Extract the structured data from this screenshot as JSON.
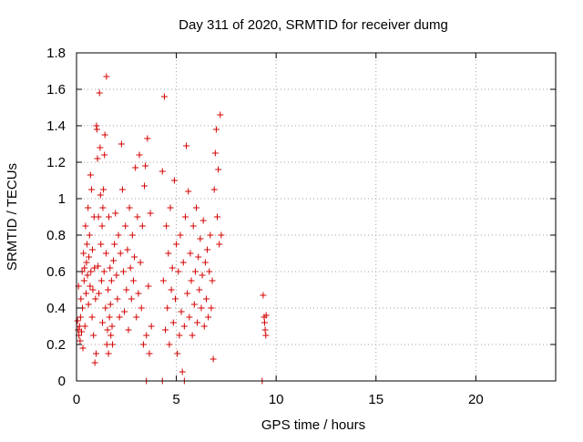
{
  "chart_data": {
    "type": "scatter",
    "title": "Day 311 of 2020, SRMTID for receiver dumg",
    "xlabel": "GPS time / hours",
    "ylabel": "SRMTID / TECUs",
    "xlim": [
      0,
      24
    ],
    "ylim": [
      0,
      1.8
    ],
    "x_ticks": [
      0,
      5,
      10,
      15,
      20
    ],
    "x_tick_labels": [
      "0",
      "5",
      "10",
      "15",
      "20"
    ],
    "y_ticks": [
      0,
      0.2,
      0.4,
      0.6,
      0.8,
      1.0,
      1.2,
      1.4,
      1.6,
      1.8
    ],
    "y_tick_labels": [
      "0",
      "0.2",
      "0.4",
      "0.6",
      "0.8",
      "1",
      "1.2",
      "1.4",
      "1.6",
      "1.8"
    ],
    "grid": true,
    "legend": "none",
    "marker": "plus",
    "color": "#d40000",
    "series": [
      {
        "points": [
          [
            0.05,
            0.33
          ],
          [
            0.08,
            0.28
          ],
          [
            0.1,
            0.52
          ],
          [
            0.12,
            0.25
          ],
          [
            0.15,
            0.3
          ],
          [
            0.18,
            0.22
          ],
          [
            0.2,
            0.35
          ],
          [
            0.22,
            0.45
          ],
          [
            0.25,
            0.27
          ],
          [
            0.28,
            0.6
          ],
          [
            0.3,
            0.4
          ],
          [
            0.32,
            0.18
          ],
          [
            0.35,
            0.7
          ],
          [
            0.38,
            0.55
          ],
          [
            0.4,
            0.62
          ],
          [
            0.42,
            0.3
          ],
          [
            0.45,
            0.85
          ],
          [
            0.48,
            0.48
          ],
          [
            0.5,
            0.65
          ],
          [
            0.52,
            0.75
          ],
          [
            0.55,
            0.58
          ],
          [
            0.58,
            0.95
          ],
          [
            0.6,
            0.42
          ],
          [
            0.62,
            0.68
          ],
          [
            0.65,
            0.8
          ],
          [
            0.68,
            0.52
          ],
          [
            0.7,
            1.13
          ],
          [
            0.72,
            0.6
          ],
          [
            0.75,
            1.05
          ],
          [
            0.78,
            0.35
          ],
          [
            0.8,
            0.72
          ],
          [
            0.82,
            0.5
          ],
          [
            0.85,
            0.25
          ],
          [
            0.88,
            0.9
          ],
          [
            0.9,
            0.62
          ],
          [
            0.92,
            0.1
          ],
          [
            0.95,
            0.45
          ],
          [
            0.98,
            0.15
          ],
          [
            1.0,
            1.4
          ],
          [
            1.02,
            1.38
          ],
          [
            1.05,
            1.22
          ],
          [
            1.08,
            0.63
          ],
          [
            1.1,
            0.9
          ],
          [
            1.12,
            0.48
          ],
          [
            1.15,
            1.58
          ],
          [
            1.18,
            1.28
          ],
          [
            1.2,
            1.02
          ],
          [
            1.22,
            0.75
          ],
          [
            1.25,
            0.55
          ],
          [
            1.28,
            0.85
          ],
          [
            1.3,
            0.32
          ],
          [
            1.32,
            0.95
          ],
          [
            1.35,
            1.05
          ],
          [
            1.38,
            0.6
          ],
          [
            1.4,
            1.24
          ],
          [
            1.42,
            1.35
          ],
          [
            1.45,
            0.4
          ],
          [
            1.48,
            0.7
          ],
          [
            1.5,
            1.67
          ],
          [
            1.52,
            0.2
          ],
          [
            1.55,
            0.28
          ],
          [
            1.58,
            0.5
          ],
          [
            1.6,
            0.15
          ],
          [
            1.62,
            0.9
          ],
          [
            1.65,
            0.35
          ],
          [
            1.68,
            0.62
          ],
          [
            1.7,
            0.42
          ],
          [
            1.72,
            0.25
          ],
          [
            1.75,
            0.55
          ],
          [
            1.78,
            0.3
          ],
          [
            1.8,
            0.2
          ],
          [
            1.85,
            0.66
          ],
          [
            1.9,
            0.75
          ],
          [
            1.95,
            0.92
          ],
          [
            2.0,
            0.58
          ],
          [
            2.05,
            0.45
          ],
          [
            2.1,
            0.8
          ],
          [
            2.15,
            0.35
          ],
          [
            2.2,
            0.7
          ],
          [
            2.25,
            1.3
          ],
          [
            2.3,
            1.05
          ],
          [
            2.35,
            0.6
          ],
          [
            2.4,
            0.38
          ],
          [
            2.45,
            0.85
          ],
          [
            2.5,
            0.5
          ],
          [
            2.55,
            0.72
          ],
          [
            2.6,
            0.28
          ],
          [
            2.65,
            0.95
          ],
          [
            2.7,
            0.62
          ],
          [
            2.75,
            0.45
          ],
          [
            2.8,
            0.8
          ],
          [
            2.85,
            0.55
          ],
          [
            2.9,
            0.68
          ],
          [
            2.95,
            1.17
          ],
          [
            3.0,
            0.35
          ],
          [
            3.05,
            0.9
          ],
          [
            3.1,
            0.48
          ],
          [
            3.15,
            1.24
          ],
          [
            3.2,
            0.65
          ],
          [
            3.25,
            0.4
          ],
          [
            3.3,
            0.85
          ],
          [
            3.35,
            0.2
          ],
          [
            3.4,
            1.07
          ],
          [
            3.45,
            1.18
          ],
          [
            3.5,
            0.25
          ],
          [
            3.55,
            1.33
          ],
          [
            3.6,
            0.52
          ],
          [
            3.65,
            0.15
          ],
          [
            3.7,
            0.92
          ],
          [
            3.75,
            0.3
          ],
          [
            4.3,
            1.15
          ],
          [
            4.35,
            0.55
          ],
          [
            4.4,
            1.56
          ],
          [
            4.45,
            0.28
          ],
          [
            4.5,
            0.85
          ],
          [
            4.55,
            0.4
          ],
          [
            4.6,
            0.7
          ],
          [
            4.65,
            0.2
          ],
          [
            4.7,
            0.95
          ],
          [
            4.75,
            0.5
          ],
          [
            4.8,
            0.62
          ],
          [
            4.85,
            0.32
          ],
          [
            4.9,
            1.1
          ],
          [
            4.95,
            0.45
          ],
          [
            5.0,
            0.75
          ],
          [
            5.05,
            0.15
          ],
          [
            5.1,
            0.6
          ],
          [
            5.15,
            0.25
          ],
          [
            5.2,
            0.8
          ],
          [
            5.25,
            0.38
          ],
          [
            5.3,
            0.05
          ],
          [
            5.35,
            0.65
          ],
          [
            5.4,
            0.3
          ],
          [
            5.45,
            0.9
          ],
          [
            5.5,
            1.29
          ],
          [
            5.55,
            0.48
          ],
          [
            5.6,
            1.04
          ],
          [
            5.65,
            0.35
          ],
          [
            5.7,
            0.7
          ],
          [
            5.75,
            0.55
          ],
          [
            5.8,
            0.25
          ],
          [
            5.85,
            0.85
          ],
          [
            5.9,
            0.42
          ],
          [
            5.95,
            0.6
          ],
          [
            6.0,
            0.95
          ],
          [
            6.05,
            0.32
          ],
          [
            6.1,
            0.68
          ],
          [
            6.15,
            0.5
          ],
          [
            6.2,
            0.78
          ],
          [
            6.25,
            0.4
          ],
          [
            6.3,
            0.58
          ],
          [
            6.35,
            0.88
          ],
          [
            6.4,
            0.3
          ],
          [
            6.45,
            0.65
          ],
          [
            6.5,
            0.45
          ],
          [
            6.55,
            0.72
          ],
          [
            6.6,
            0.35
          ],
          [
            6.65,
            0.6
          ],
          [
            6.7,
            0.8
          ],
          [
            6.75,
            0.4
          ],
          [
            6.8,
            0.55
          ],
          [
            6.85,
            0.12
          ],
          [
            6.9,
            1.05
          ],
          [
            6.95,
            1.25
          ],
          [
            7.0,
            1.38
          ],
          [
            7.05,
            0.9
          ],
          [
            7.1,
            1.16
          ],
          [
            7.15,
            0.75
          ],
          [
            7.2,
            1.46
          ],
          [
            7.25,
            0.8
          ],
          [
            3.5,
            0.0
          ],
          [
            4.3,
            0.0
          ],
          [
            5.4,
            0.0
          ],
          [
            9.3,
            0.0
          ],
          [
            9.35,
            0.47
          ],
          [
            9.4,
            0.35
          ],
          [
            9.42,
            0.32
          ],
          [
            9.45,
            0.28
          ],
          [
            9.48,
            0.25
          ],
          [
            9.5,
            0.36
          ]
        ]
      }
    ]
  }
}
